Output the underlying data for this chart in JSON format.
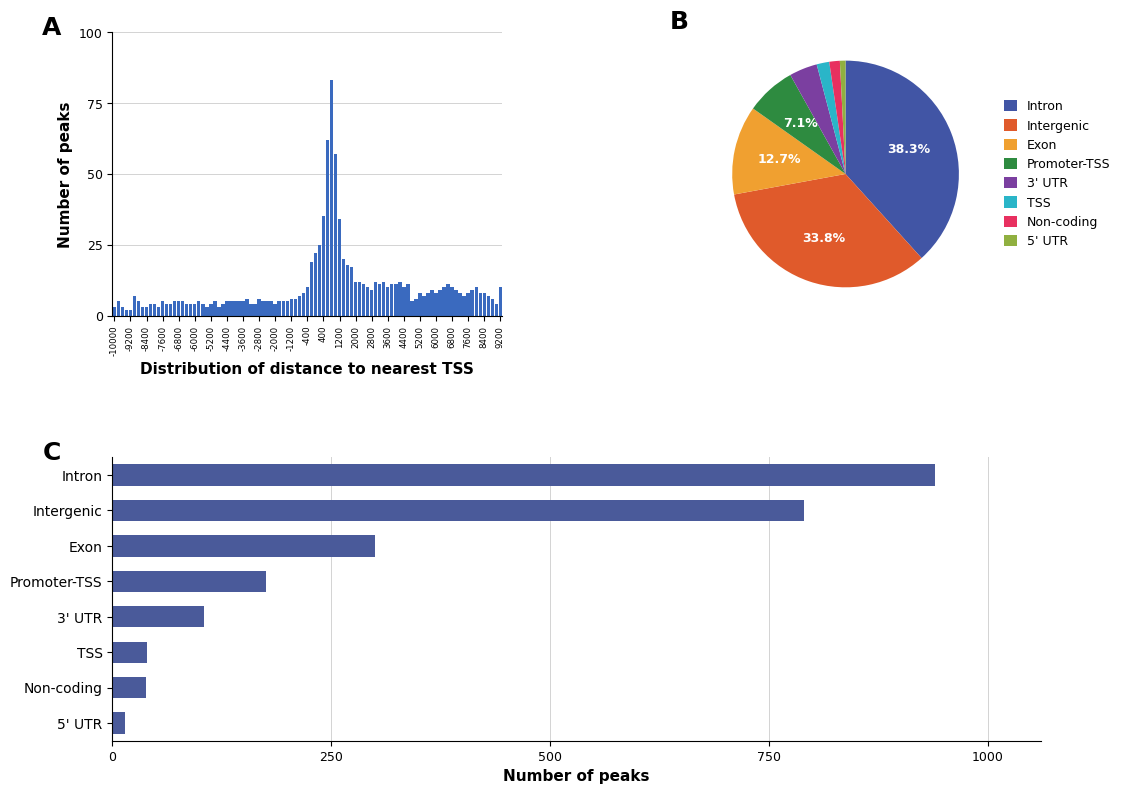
{
  "hist_values": [
    3,
    5,
    3,
    2,
    2,
    7,
    5,
    3,
    3,
    4,
    4,
    3,
    5,
    4,
    4,
    5,
    5,
    5,
    4,
    4,
    4,
    5,
    4,
    3,
    4,
    5,
    3,
    4,
    5,
    5,
    5,
    5,
    5,
    6,
    4,
    4,
    6,
    5,
    5,
    5,
    4,
    5,
    5,
    5,
    6,
    6,
    7,
    8,
    10,
    19,
    22,
    25,
    35,
    62,
    83,
    57,
    34,
    20,
    18,
    17,
    12,
    12,
    11,
    10,
    9,
    12,
    11,
    12,
    10,
    11,
    11,
    12,
    10,
    11,
    5,
    6,
    8,
    7,
    8,
    9,
    8,
    9,
    10,
    11,
    10,
    9,
    8,
    7,
    8,
    9,
    10,
    8,
    8,
    7,
    6,
    4,
    10
  ],
  "hist_color": "#3a6abf",
  "hist_xlabel": "Distribution of distance to nearest TSS",
  "hist_ylabel": "Number of peaks",
  "hist_ylim": [
    0,
    100
  ],
  "hist_yticks": [
    0,
    25,
    50,
    75,
    100
  ],
  "pie_sizes": [
    38.3,
    33.8,
    12.7,
    7.1,
    4.0,
    1.8,
    1.5,
    0.8
  ],
  "pie_colors": [
    "#4155a5",
    "#e05a2b",
    "#f0a030",
    "#2e8b40",
    "#7b3fa0",
    "#2ab5c8",
    "#e83060",
    "#90b040"
  ],
  "pie_pct_labels": [
    "38.3%",
    "33.8%",
    "12.7%",
    "7.1%",
    "",
    "",
    "",
    ""
  ],
  "pie_legend_labels": [
    "Intron",
    "Intergenic",
    "Exon",
    "Promoter-TSS",
    "3' UTR",
    "TSS",
    "Non-coding",
    "5' UTR"
  ],
  "bar_categories": [
    "Intron",
    "Intergenic",
    "Exon",
    "Promoter-TSS",
    "3' UTR",
    "TSS",
    "Non-coding",
    "5' UTR"
  ],
  "bar_values": [
    940,
    790,
    300,
    175,
    105,
    40,
    38,
    15
  ],
  "bar_color": "#4a5a9a",
  "bar_xlabel": "Number of peaks",
  "bar_xticks": [
    0,
    250,
    500,
    750,
    1000
  ],
  "bar_xlim": [
    0,
    1060
  ],
  "bg_color": "#ffffff",
  "panel_label_fontsize": 18,
  "axis_label_fontsize": 11,
  "tick_fontsize": 9
}
